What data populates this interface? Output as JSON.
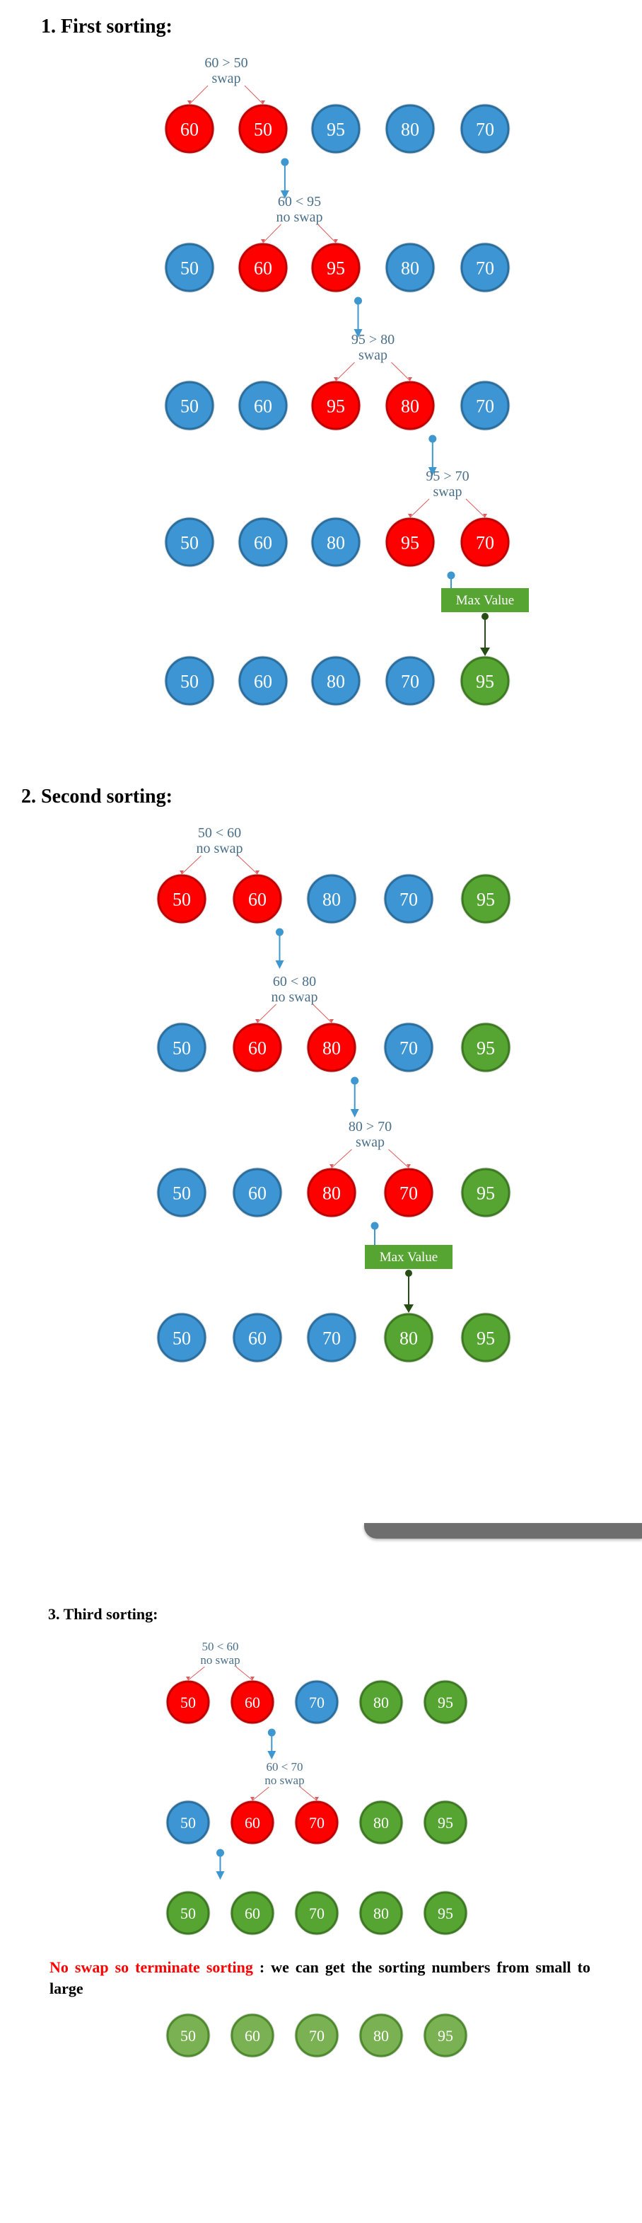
{
  "colors": {
    "red": "#ff0000",
    "blue": "#3d95d3",
    "green": "#56a532",
    "label": "#4a6f8a",
    "arrow": "#3f97cf"
  },
  "headings": [
    "1.  First sorting:",
    "2.  Second sorting:",
    "3.  Third sorting:"
  ],
  "note": {
    "highlight": "No swap so terminate sorting",
    "rest": " : we can get the sorting numbers from small to large"
  },
  "passes": [
    {
      "rows": [
        {
          "nodes": [
            [
              "60",
              "red"
            ],
            [
              "50",
              "red"
            ],
            [
              "95",
              "blue"
            ],
            [
              "80",
              "blue"
            ],
            [
              "70",
              "blue"
            ]
          ],
          "compare": {
            "between": [
              0,
              1
            ],
            "line1": "60 > 50",
            "line2": "swap"
          }
        },
        {
          "nodes": [
            [
              "50",
              "blue"
            ],
            [
              "60",
              "red"
            ],
            [
              "95",
              "red"
            ],
            [
              "80",
              "blue"
            ],
            [
              "70",
              "blue"
            ]
          ],
          "compare": {
            "between": [
              1,
              2
            ],
            "line1": "60 < 95",
            "line2": "no swap"
          }
        },
        {
          "nodes": [
            [
              "50",
              "blue"
            ],
            [
              "60",
              "blue"
            ],
            [
              "95",
              "red"
            ],
            [
              "80",
              "red"
            ],
            [
              "70",
              "blue"
            ]
          ],
          "compare": {
            "between": [
              2,
              3
            ],
            "line1": "95 > 80",
            "line2": "swap"
          }
        },
        {
          "nodes": [
            [
              "50",
              "blue"
            ],
            [
              "60",
              "blue"
            ],
            [
              "80",
              "blue"
            ],
            [
              "95",
              "red"
            ],
            [
              "70",
              "red"
            ]
          ],
          "compare": {
            "between": [
              3,
              4
            ],
            "line1": "95 > 70",
            "line2": "swap"
          }
        },
        {
          "nodes": [
            [
              "50",
              "blue"
            ],
            [
              "60",
              "blue"
            ],
            [
              "80",
              "blue"
            ],
            [
              "70",
              "blue"
            ],
            [
              "95",
              "green"
            ]
          ],
          "max_label": "Max Value"
        }
      ]
    },
    {
      "rows": [
        {
          "nodes": [
            [
              "50",
              "red"
            ],
            [
              "60",
              "red"
            ],
            [
              "80",
              "blue"
            ],
            [
              "70",
              "blue"
            ],
            [
              "95",
              "green"
            ]
          ],
          "compare": {
            "between": [
              0,
              1
            ],
            "line1": "50 < 60",
            "line2": "no swap"
          }
        },
        {
          "nodes": [
            [
              "50",
              "blue"
            ],
            [
              "60",
              "red"
            ],
            [
              "80",
              "red"
            ],
            [
              "70",
              "blue"
            ],
            [
              "95",
              "green"
            ]
          ],
          "compare": {
            "between": [
              1,
              2
            ],
            "line1": "60 < 80",
            "line2": "no swap"
          }
        },
        {
          "nodes": [
            [
              "50",
              "blue"
            ],
            [
              "60",
              "blue"
            ],
            [
              "80",
              "red"
            ],
            [
              "70",
              "red"
            ],
            [
              "95",
              "green"
            ]
          ],
          "compare": {
            "between": [
              2,
              3
            ],
            "line1": "80 > 70",
            "line2": "swap"
          }
        },
        {
          "nodes": [
            [
              "50",
              "blue"
            ],
            [
              "60",
              "blue"
            ],
            [
              "70",
              "blue"
            ],
            [
              "80",
              "green"
            ],
            [
              "95",
              "green"
            ]
          ],
          "max_label": "Max Value"
        }
      ]
    },
    {
      "rows": [
        {
          "nodes": [
            [
              "50",
              "red"
            ],
            [
              "60",
              "red"
            ],
            [
              "70",
              "blue"
            ],
            [
              "80",
              "green"
            ],
            [
              "95",
              "green"
            ]
          ],
          "compare": {
            "between": [
              0,
              1
            ],
            "line1": "50 < 60",
            "line2": "no swap"
          }
        },
        {
          "nodes": [
            [
              "50",
              "blue"
            ],
            [
              "60",
              "red"
            ],
            [
              "70",
              "red"
            ],
            [
              "80",
              "green"
            ],
            [
              "95",
              "green"
            ]
          ],
          "compare": {
            "between": [
              1,
              2
            ],
            "line1": "60 < 70",
            "line2": "no swap"
          }
        },
        {
          "nodes": [
            [
              "50",
              "green"
            ],
            [
              "60",
              "green"
            ],
            [
              "70",
              "green"
            ],
            [
              "80",
              "green"
            ],
            [
              "95",
              "green"
            ]
          ]
        }
      ]
    }
  ],
  "final_row": [
    "50",
    "60",
    "70",
    "80",
    "95"
  ]
}
